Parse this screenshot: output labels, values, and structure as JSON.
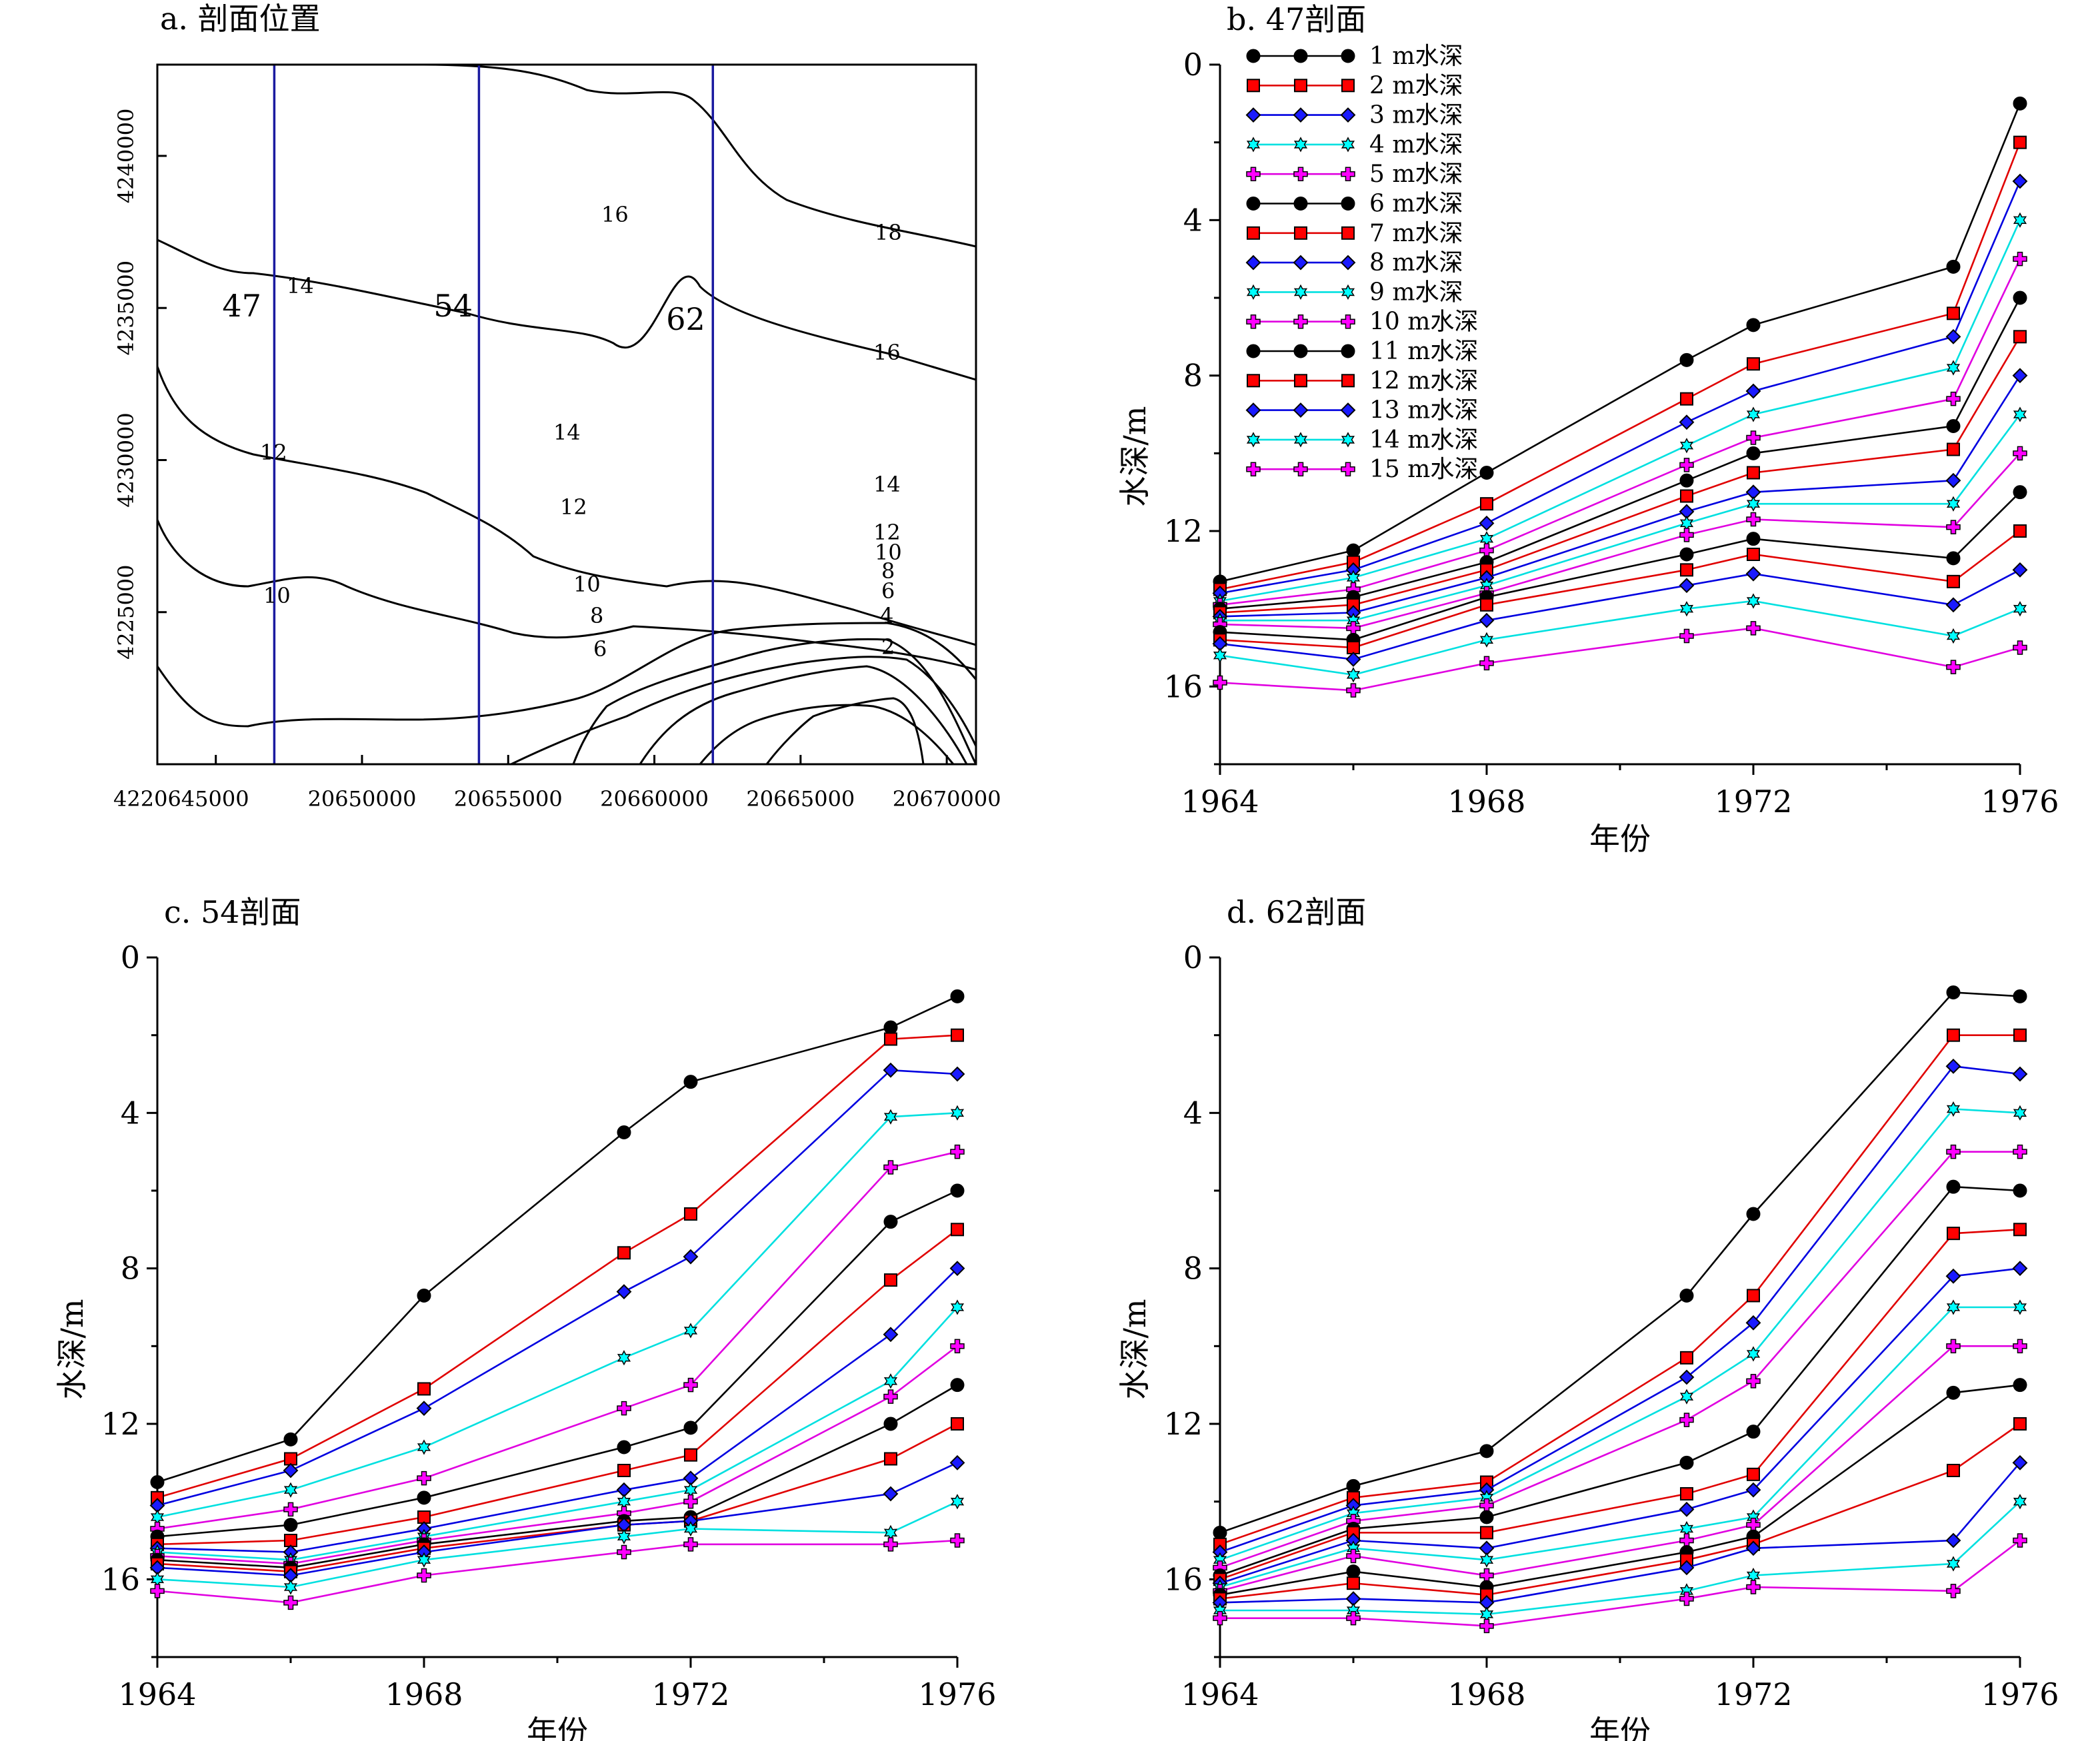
{
  "map": {
    "title": "a. 剖面位置",
    "x_ticks": [
      "20645000",
      "20650000",
      "20655000",
      "20660000",
      "20665000",
      "20670000"
    ],
    "x_tick_values": [
      20645000,
      20650000,
      20655000,
      20660000,
      20665000,
      20670000
    ],
    "y_ticks": [
      "4240000",
      "4235000",
      "4230000",
      "4225000",
      "4220000"
    ],
    "y_tick_values": [
      4240000,
      4235000,
      4230000,
      4225000,
      4220000
    ],
    "origin_label": "4220645000",
    "xlim": [
      20643000,
      20671000
    ],
    "ylim": [
      4220000,
      4243000
    ],
    "profiles": [
      {
        "name": "47",
        "x": 20647000
      },
      {
        "name": "54",
        "x": 20654000
      },
      {
        "name": "62",
        "x": 20662000
      }
    ],
    "contour_labels": [
      "18",
      "16",
      "16",
      "14",
      "14",
      "14",
      "12",
      "12",
      "12",
      "10",
      "10",
      "10",
      "8",
      "8",
      "6",
      "6",
      "4",
      "2"
    ],
    "line_color": "#1a1aa0"
  },
  "chart_data": [
    {
      "type": "line",
      "title": "b. 47剖面",
      "xlabel": "年份",
      "ylabel": "水深/m",
      "x": [
        1964,
        1966,
        1968,
        1971,
        1972,
        1975,
        1976
      ],
      "xlim": [
        1964,
        1976
      ],
      "ylim": [
        0,
        18
      ],
      "y_inverted": true,
      "x_ticks": [
        "1964",
        "1968",
        "1972",
        "1976"
      ],
      "y_ticks": [
        "0",
        "4",
        "8",
        "12",
        "16"
      ],
      "legend_position": "top-left",
      "series": [
        {
          "name": "1 m水深",
          "values": [
            13.3,
            12.5,
            10.5,
            7.6,
            6.7,
            5.2,
            1.0
          ]
        },
        {
          "name": "2 m水深",
          "values": [
            13.5,
            12.8,
            11.3,
            8.6,
            7.7,
            6.4,
            2.0
          ]
        },
        {
          "name": "3 m水深",
          "values": [
            13.6,
            13.0,
            11.8,
            9.2,
            8.4,
            7.0,
            3.0
          ]
        },
        {
          "name": "4 m水深",
          "values": [
            13.8,
            13.2,
            12.2,
            9.8,
            9.0,
            7.8,
            4.0
          ]
        },
        {
          "name": "5 m水深",
          "values": [
            13.9,
            13.5,
            12.5,
            10.3,
            9.6,
            8.6,
            5.0
          ]
        },
        {
          "name": "6 m水深",
          "values": [
            14.0,
            13.7,
            12.8,
            10.7,
            10.0,
            9.3,
            6.0
          ]
        },
        {
          "name": "7 m水深",
          "values": [
            14.1,
            13.9,
            13.0,
            11.1,
            10.5,
            9.9,
            7.0
          ]
        },
        {
          "name": "8 m水深",
          "values": [
            14.2,
            14.1,
            13.2,
            11.5,
            11.0,
            10.7,
            8.0
          ]
        },
        {
          "name": "9 m水深",
          "values": [
            14.3,
            14.3,
            13.4,
            11.8,
            11.3,
            11.3,
            9.0
          ]
        },
        {
          "name": "10 m水深",
          "values": [
            14.4,
            14.5,
            13.6,
            12.1,
            11.7,
            11.9,
            10.0
          ]
        },
        {
          "name": "11 m水深",
          "values": [
            14.6,
            14.8,
            13.7,
            12.6,
            12.2,
            12.7,
            11.0
          ]
        },
        {
          "name": "12 m水深",
          "values": [
            14.8,
            15.0,
            13.9,
            13.0,
            12.6,
            13.3,
            12.0
          ]
        },
        {
          "name": "13 m水深",
          "values": [
            14.9,
            15.3,
            14.3,
            13.4,
            13.1,
            13.9,
            13.0
          ]
        },
        {
          "name": "14 m水深",
          "values": [
            15.2,
            15.7,
            14.8,
            14.0,
            13.8,
            14.7,
            14.0
          ]
        },
        {
          "name": "15 m水深",
          "values": [
            15.9,
            16.1,
            15.4,
            14.7,
            14.5,
            15.5,
            15.0
          ]
        }
      ]
    },
    {
      "type": "line",
      "title": "c. 54剖面",
      "xlabel": "年份",
      "ylabel": "水深/m",
      "x": [
        1964,
        1966,
        1968,
        1971,
        1972,
        1975,
        1976
      ],
      "xlim": [
        1964,
        1976
      ],
      "ylim": [
        0,
        18
      ],
      "y_inverted": true,
      "x_ticks": [
        "1964",
        "1968",
        "1972",
        "1976"
      ],
      "y_ticks": [
        "0",
        "4",
        "8",
        "12",
        "16"
      ],
      "series": [
        {
          "name": "1 m水深",
          "values": [
            13.5,
            12.4,
            8.7,
            4.5,
            3.2,
            1.8,
            1.0
          ]
        },
        {
          "name": "2 m水深",
          "values": [
            13.9,
            12.9,
            11.1,
            7.6,
            6.6,
            2.1,
            2.0
          ]
        },
        {
          "name": "3 m水深",
          "values": [
            14.1,
            13.2,
            11.6,
            8.6,
            7.7,
            2.9,
            3.0
          ]
        },
        {
          "name": "4 m水深",
          "values": [
            14.4,
            13.7,
            12.6,
            10.3,
            9.6,
            4.1,
            4.0
          ]
        },
        {
          "name": "5 m水深",
          "values": [
            14.7,
            14.2,
            13.4,
            11.6,
            11.0,
            5.4,
            5.0
          ]
        },
        {
          "name": "6 m水深",
          "values": [
            14.9,
            14.6,
            13.9,
            12.6,
            12.1,
            6.8,
            6.0
          ]
        },
        {
          "name": "7 m水深",
          "values": [
            15.1,
            15.0,
            14.4,
            13.2,
            12.8,
            8.3,
            7.0
          ]
        },
        {
          "name": "8 m水深",
          "values": [
            15.2,
            15.3,
            14.7,
            13.7,
            13.4,
            9.7,
            8.0
          ]
        },
        {
          "name": "9 m水深",
          "values": [
            15.3,
            15.5,
            14.9,
            14.0,
            13.7,
            10.9,
            9.0
          ]
        },
        {
          "name": "10 m水深",
          "values": [
            15.4,
            15.6,
            15.0,
            14.3,
            14.0,
            11.3,
            10.0
          ]
        },
        {
          "name": "11 m水深",
          "values": [
            15.5,
            15.7,
            15.1,
            14.5,
            14.4,
            12.0,
            11.0
          ]
        },
        {
          "name": "12 m水深",
          "values": [
            15.6,
            15.8,
            15.2,
            14.6,
            14.5,
            12.9,
            12.0
          ]
        },
        {
          "name": "13 m水深",
          "values": [
            15.7,
            15.9,
            15.3,
            14.6,
            14.5,
            13.8,
            13.0
          ]
        },
        {
          "name": "14 m水深",
          "values": [
            16.0,
            16.2,
            15.5,
            14.9,
            14.7,
            14.8,
            14.0
          ]
        },
        {
          "name": "15 m水深",
          "values": [
            16.3,
            16.6,
            15.9,
            15.3,
            15.1,
            15.1,
            15.0
          ]
        }
      ]
    },
    {
      "type": "line",
      "title": "d. 62剖面",
      "xlabel": "年份",
      "ylabel": "水深/m",
      "x": [
        1964,
        1966,
        1968,
        1971,
        1972,
        1975,
        1976
      ],
      "xlim": [
        1964,
        1976
      ],
      "ylim": [
        0,
        18
      ],
      "y_inverted": true,
      "x_ticks": [
        "1964",
        "1968",
        "1972",
        "1976"
      ],
      "y_ticks": [
        "0",
        "4",
        "8",
        "12",
        "16"
      ],
      "series": [
        {
          "name": "1 m水深",
          "values": [
            14.8,
            13.6,
            12.7,
            8.7,
            6.6,
            0.9,
            1.0
          ]
        },
        {
          "name": "2 m水深",
          "values": [
            15.1,
            13.9,
            13.5,
            10.3,
            8.7,
            2.0,
            2.0
          ]
        },
        {
          "name": "3 m水深",
          "values": [
            15.3,
            14.1,
            13.7,
            10.8,
            9.4,
            2.8,
            3.0
          ]
        },
        {
          "name": "4 m水深",
          "values": [
            15.5,
            14.3,
            13.9,
            11.3,
            10.2,
            3.9,
            4.0
          ]
        },
        {
          "name": "5 m水深",
          "values": [
            15.7,
            14.5,
            14.1,
            11.9,
            10.9,
            5.0,
            5.0
          ]
        },
        {
          "name": "6 m水深",
          "values": [
            15.9,
            14.7,
            14.4,
            13.0,
            12.2,
            5.9,
            6.0
          ]
        },
        {
          "name": "7 m水深",
          "values": [
            16.0,
            14.8,
            14.8,
            13.8,
            13.3,
            7.1,
            7.0
          ]
        },
        {
          "name": "8 m水深",
          "values": [
            16.1,
            15.0,
            15.2,
            14.2,
            13.7,
            8.2,
            8.0
          ]
        },
        {
          "name": "9 m水深",
          "values": [
            16.2,
            15.2,
            15.5,
            14.7,
            14.4,
            9.0,
            9.0
          ]
        },
        {
          "name": "10 m水深",
          "values": [
            16.3,
            15.4,
            15.9,
            15.0,
            14.6,
            10.0,
            10.0
          ]
        },
        {
          "name": "11 m水深",
          "values": [
            16.4,
            15.8,
            16.2,
            15.3,
            14.9,
            11.2,
            11.0
          ]
        },
        {
          "name": "12 m水深",
          "values": [
            16.5,
            16.1,
            16.4,
            15.5,
            15.1,
            13.2,
            12.0
          ]
        },
        {
          "name": "13 m水深",
          "values": [
            16.6,
            16.5,
            16.6,
            15.7,
            15.2,
            15.0,
            13.0
          ]
        },
        {
          "name": "14 m水深",
          "values": [
            16.8,
            16.8,
            16.9,
            16.3,
            15.9,
            15.6,
            14.0
          ]
        },
        {
          "name": "15 m水深",
          "values": [
            17.0,
            17.0,
            17.2,
            16.5,
            16.2,
            16.3,
            15.0
          ]
        }
      ]
    }
  ],
  "style": {
    "series_colors": [
      "#000000",
      "#e00000",
      "#0000e0",
      "#00e0e0",
      "#e000e0"
    ],
    "marker_fill": [
      "#000000",
      "#ff0000",
      "#1a1aff",
      "#00ffff",
      "#ff00ff"
    ],
    "marker_shapes": [
      "circle",
      "square",
      "diamond",
      "star",
      "plus"
    ]
  }
}
